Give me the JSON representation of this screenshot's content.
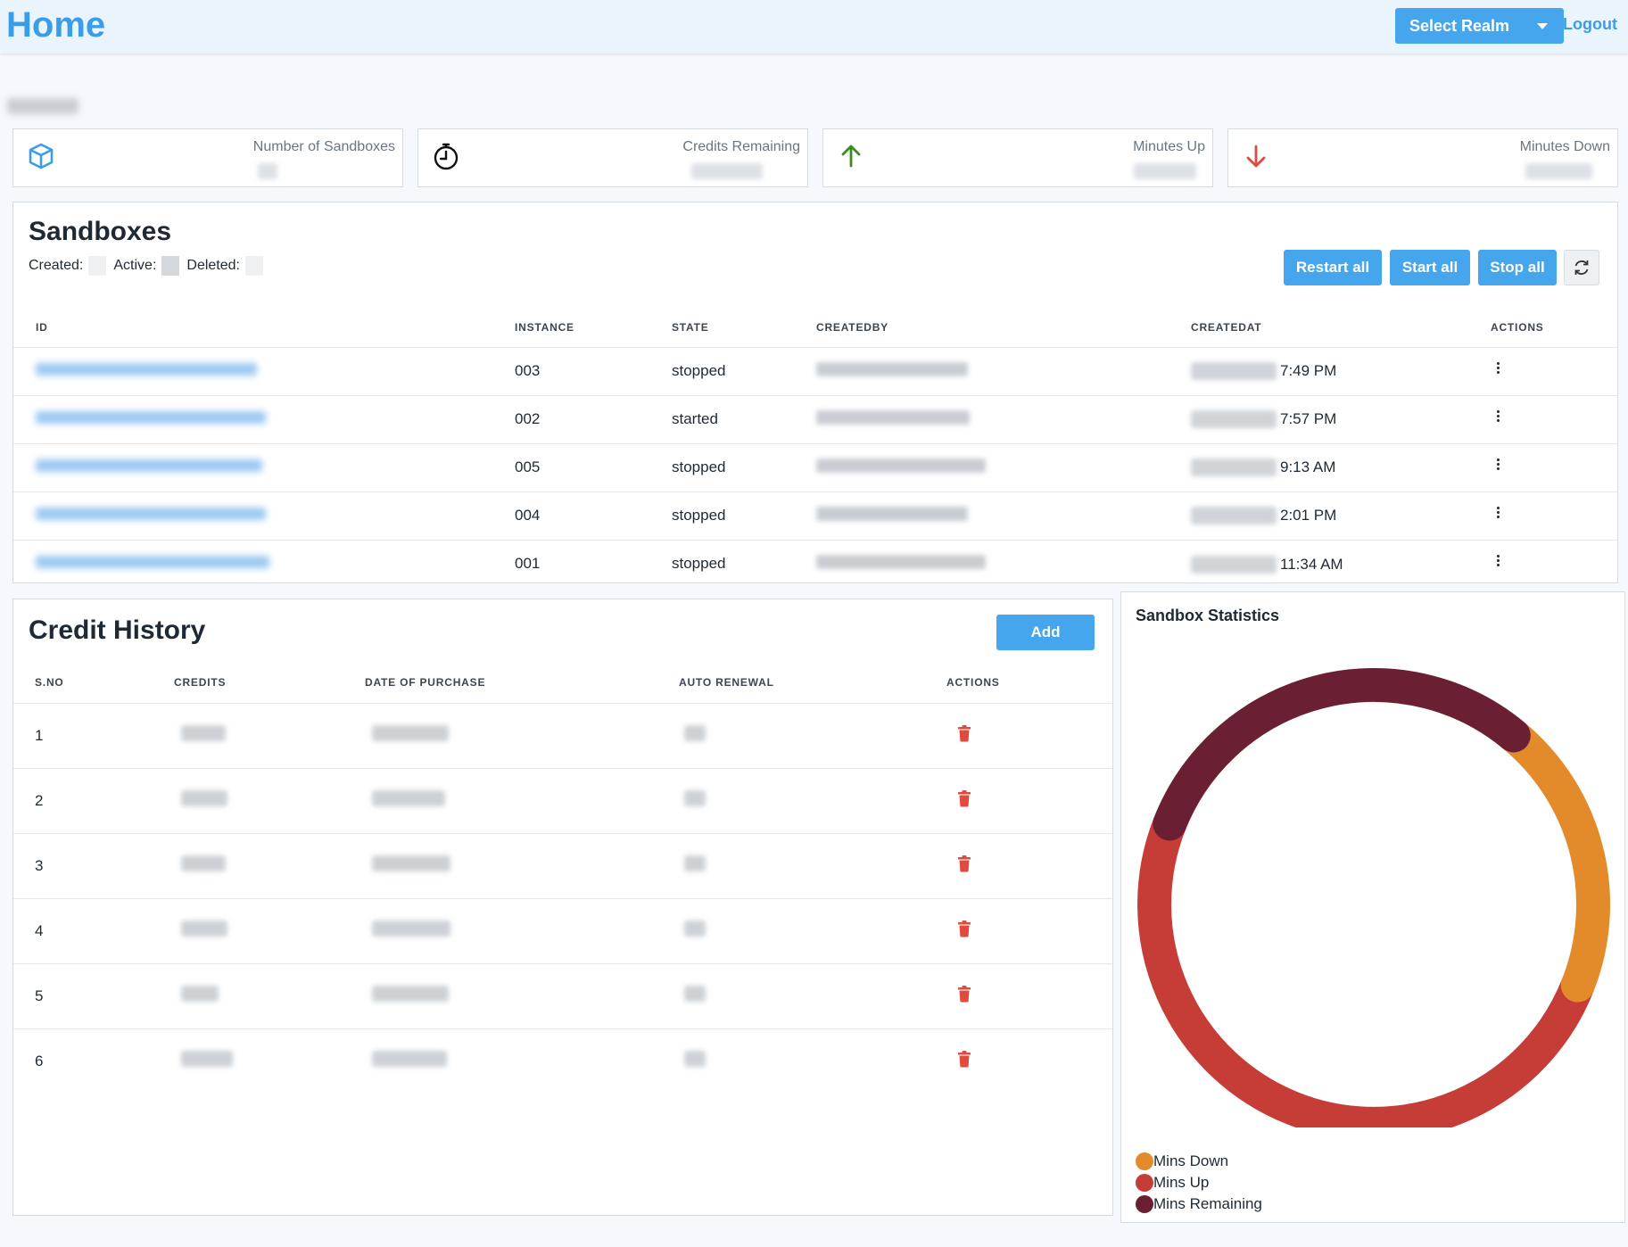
{
  "header": {
    "title": "Home",
    "realm_label": "Select Realm",
    "logout_label": "Logout"
  },
  "stats": [
    {
      "label": "Number of Sandboxes",
      "icon": "cube-icon"
    },
    {
      "label": "Credits Remaining",
      "icon": "stopwatch-icon"
    },
    {
      "label": "Minutes Up",
      "icon": "arrow-up-icon"
    },
    {
      "label": "Minutes Down",
      "icon": "arrow-down-icon"
    }
  ],
  "sandboxes": {
    "title": "Sandboxes",
    "created_label": "Created:",
    "active_label": "Active:",
    "deleted_label": "Deleted:",
    "buttons": {
      "restart": "Restart all",
      "start": "Start all",
      "stop": "Stop all"
    },
    "columns": [
      "ID",
      "INSTANCE",
      "STATE",
      "CREATEDBY",
      "CREATEDAT",
      "ACTIONS"
    ],
    "rows": [
      {
        "instance": "003",
        "state": "stopped",
        "time": "7:49 PM"
      },
      {
        "instance": "002",
        "state": "started",
        "time": "7:57 PM"
      },
      {
        "instance": "005",
        "state": "stopped",
        "time": "9:13 AM"
      },
      {
        "instance": "004",
        "state": "stopped",
        "time": "2:01 PM"
      },
      {
        "instance": "001",
        "state": "stopped",
        "time": "11:34 AM"
      }
    ]
  },
  "credit_history": {
    "title": "Credit History",
    "add_label": "Add",
    "columns": [
      "S.NO",
      "CREDITS",
      "DATE OF PURCHASE",
      "AUTO RENEWAL",
      "ACTIONS"
    ],
    "rows": [
      {
        "sno": "1"
      },
      {
        "sno": "2"
      },
      {
        "sno": "3"
      },
      {
        "sno": "4"
      },
      {
        "sno": "5"
      },
      {
        "sno": "6"
      }
    ]
  },
  "statistics": {
    "title": "Sandbox Statistics",
    "chart_data": {
      "type": "pie",
      "categories": [
        "Mins Down",
        "Mins Up",
        "Mins Remaining"
      ],
      "values": [
        0.2,
        0.5,
        0.3
      ],
      "colors": [
        "#e38a2a",
        "#c63d37",
        "#6b1f33"
      ]
    }
  },
  "colors": {
    "accent": "#45a6ee",
    "danger": "#e04b3f",
    "success": "#3d8b1f"
  }
}
